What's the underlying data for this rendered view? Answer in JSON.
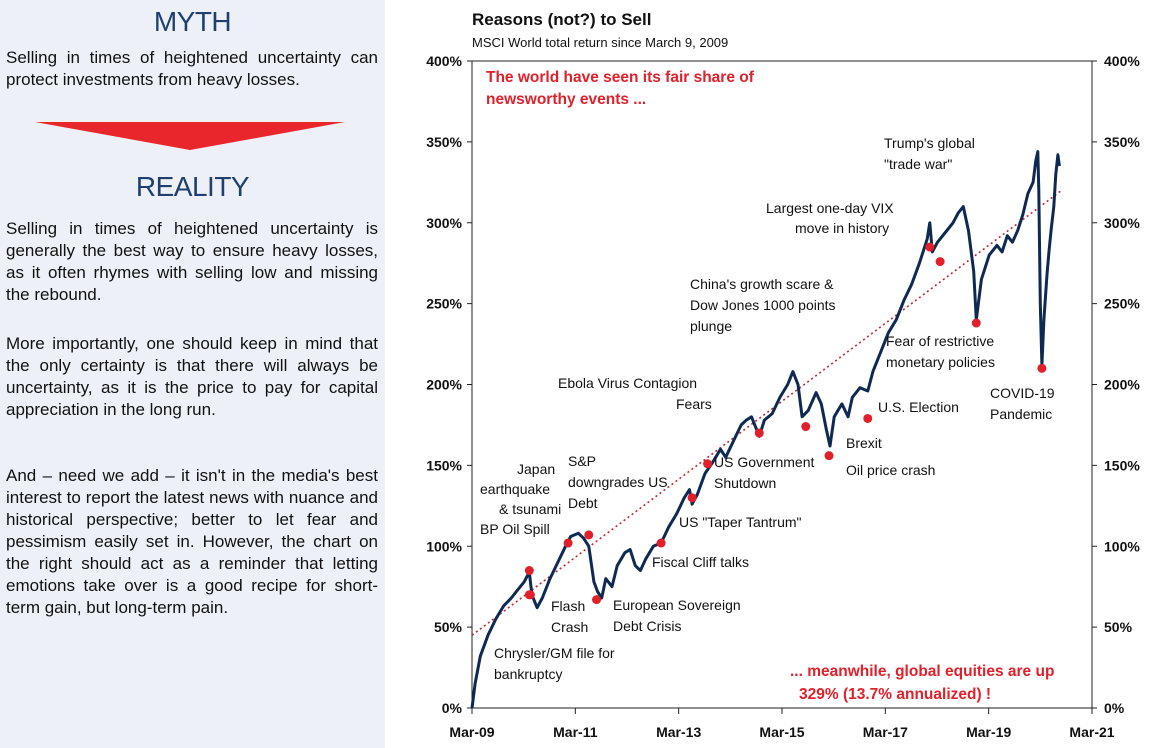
{
  "left": {
    "myth_title": "MYTH",
    "myth_text": "Selling in times of heightened uncertainty can protect investments from heavy losses.",
    "reality_title": "REALITY",
    "reality_p1": "Selling in times of heightened uncertainty is generally the best way to ensure heavy losses, as it often rhymes with selling low and missing the rebound.",
    "reality_p2": "More importantly, one should keep in mind that the only certainty is that there will always be uncertainty, as it is the price to pay for capital appreciation in the long run.",
    "reality_p3": "And – need we add – it isn't in the media's best interest to report the latest news with nuance and historical perspective; better to let fear and pessimism easily set in. However, the chart on the right should act as a reminder that letting emotions take over is a good recipe for short-term gain, but long-term pain."
  },
  "colors": {
    "line": "#0f2a52",
    "event_dot": "#e0202a",
    "trend": "#c0282d",
    "callout": "#e0202a",
    "arrow": "#e8262b",
    "heading": "#1f3f6e"
  },
  "chart_data": {
    "type": "line",
    "title": "Reasons (not?) to Sell",
    "subtitle": "MSCI World total return since March 9, 2009",
    "x_ticks": [
      "Mar-09",
      "Mar-11",
      "Mar-13",
      "Mar-15",
      "Mar-17",
      "Mar-19",
      "Mar-21"
    ],
    "y_ticks_left": [
      "0%",
      "50%",
      "100%",
      "150%",
      "200%",
      "250%",
      "300%",
      "350%",
      "400%"
    ],
    "y_ticks_right": [
      "0%",
      "50%",
      "100%",
      "150%",
      "200%",
      "250%",
      "300%",
      "350%",
      "400%"
    ],
    "xlim": [
      2009.19,
      2021.19
    ],
    "ylim": [
      0,
      400
    ],
    "series": [
      {
        "values": [
          [
            2009.19,
            0
          ],
          [
            2009.25,
            15
          ],
          [
            2009.35,
            32
          ],
          [
            2009.5,
            45
          ],
          [
            2009.65,
            55
          ],
          [
            2009.8,
            63
          ],
          [
            2009.95,
            68
          ],
          [
            2010.05,
            72
          ],
          [
            2010.2,
            78
          ],
          [
            2010.3,
            84
          ],
          [
            2010.35,
            70
          ],
          [
            2010.45,
            62
          ],
          [
            2010.55,
            68
          ],
          [
            2010.7,
            80
          ],
          [
            2010.85,
            90
          ],
          [
            2011.0,
            100
          ],
          [
            2011.1,
            106
          ],
          [
            2011.25,
            108
          ],
          [
            2011.35,
            105
          ],
          [
            2011.45,
            100
          ],
          [
            2011.55,
            78
          ],
          [
            2011.62,
            72
          ],
          [
            2011.7,
            68
          ],
          [
            2011.78,
            80
          ],
          [
            2011.9,
            75
          ],
          [
            2012.0,
            88
          ],
          [
            2012.15,
            96
          ],
          [
            2012.25,
            98
          ],
          [
            2012.35,
            88
          ],
          [
            2012.45,
            85
          ],
          [
            2012.55,
            92
          ],
          [
            2012.7,
            100
          ],
          [
            2012.85,
            102
          ],
          [
            2013.0,
            112
          ],
          [
            2013.15,
            120
          ],
          [
            2013.3,
            130
          ],
          [
            2013.4,
            135
          ],
          [
            2013.45,
            126
          ],
          [
            2013.55,
            132
          ],
          [
            2013.7,
            145
          ],
          [
            2013.85,
            152
          ],
          [
            2014.0,
            160
          ],
          [
            2014.1,
            155
          ],
          [
            2014.25,
            165
          ],
          [
            2014.4,
            175
          ],
          [
            2014.5,
            178
          ],
          [
            2014.6,
            180
          ],
          [
            2014.75,
            168
          ],
          [
            2014.85,
            178
          ],
          [
            2015.0,
            182
          ],
          [
            2015.15,
            192
          ],
          [
            2015.3,
            200
          ],
          [
            2015.4,
            208
          ],
          [
            2015.5,
            200
          ],
          [
            2015.58,
            180
          ],
          [
            2015.7,
            184
          ],
          [
            2015.85,
            195
          ],
          [
            2015.95,
            188
          ],
          [
            2016.05,
            172
          ],
          [
            2016.12,
            162
          ],
          [
            2016.2,
            180
          ],
          [
            2016.35,
            188
          ],
          [
            2016.47,
            180
          ],
          [
            2016.55,
            192
          ],
          [
            2016.7,
            198
          ],
          [
            2016.85,
            196
          ],
          [
            2016.95,
            208
          ],
          [
            2017.1,
            220
          ],
          [
            2017.25,
            232
          ],
          [
            2017.4,
            240
          ],
          [
            2017.55,
            252
          ],
          [
            2017.7,
            262
          ],
          [
            2017.85,
            275
          ],
          [
            2018.0,
            290
          ],
          [
            2018.05,
            300
          ],
          [
            2018.1,
            282
          ],
          [
            2018.2,
            288
          ],
          [
            2018.35,
            294
          ],
          [
            2018.5,
            300
          ],
          [
            2018.6,
            306
          ],
          [
            2018.7,
            310
          ],
          [
            2018.8,
            295
          ],
          [
            2018.9,
            270
          ],
          [
            2018.95,
            240
          ],
          [
            2019.05,
            265
          ],
          [
            2019.2,
            280
          ],
          [
            2019.35,
            286
          ],
          [
            2019.45,
            282
          ],
          [
            2019.55,
            292
          ],
          [
            2019.65,
            288
          ],
          [
            2019.75,
            295
          ],
          [
            2019.85,
            305
          ],
          [
            2019.95,
            318
          ],
          [
            2020.05,
            325
          ],
          [
            2020.1,
            338
          ],
          [
            2020.14,
            344
          ],
          [
            2020.16,
            320
          ],
          [
            2020.19,
            250
          ],
          [
            2020.22,
            212
          ],
          [
            2020.26,
            240
          ],
          [
            2020.32,
            268
          ],
          [
            2020.36,
            283
          ],
          [
            2020.4,
            296
          ],
          [
            2020.45,
            310
          ],
          [
            2020.49,
            330
          ],
          [
            2020.53,
            342
          ],
          [
            2020.56,
            335
          ]
        ]
      }
    ],
    "trend_line": [
      [
        2009.19,
        45
      ],
      [
        2020.6,
        320
      ]
    ],
    "events": [
      {
        "x": 2010.3,
        "y": 85,
        "label": "Japan\nearthquake\n& tsunami\nBP Oil Spill"
      },
      {
        "x": 2010.3,
        "y": 70,
        "label": "Chrysler/GM file for\nbankruptcy"
      },
      {
        "x": 2011.05,
        "y": 102,
        "label": ""
      },
      {
        "x": 2011.45,
        "y": 107,
        "label": "S&P\ndowngrades US\nDebt"
      },
      {
        "x": 2011.6,
        "y": 67,
        "label": "European Sovereign\nDebt Crisis"
      },
      {
        "x": 2012.85,
        "y": 102,
        "label": "Fiscal Cliff talks"
      },
      {
        "x": 2013.45,
        "y": 130,
        "label": "US \"Taper Tantrum\""
      },
      {
        "x": 2013.75,
        "y": 151,
        "label": "US Government\nShutdown"
      },
      {
        "x": 2014.75,
        "y": 170,
        "label": "Ebola Virus Contagion\nFears"
      },
      {
        "x": 2015.65,
        "y": 174,
        "label": "China's growth scare &\nDow Jones 1000 points\nplunge"
      },
      {
        "x": 2016.1,
        "y": 156,
        "label": "Brexit\nOil price crash"
      },
      {
        "x": 2016.85,
        "y": 179,
        "label": "U.S. Election"
      },
      {
        "x": 2018.05,
        "y": 285,
        "label": "Largest one-day VIX\nmove in history"
      },
      {
        "x": 2018.25,
        "y": 276,
        "label": "Trump's global\n\"trade war\""
      },
      {
        "x": 2018.95,
        "y": 238,
        "label": "Fear of restrictive\nmonetary policies"
      },
      {
        "x": 2020.22,
        "y": 210,
        "label": "COVID-19\nPandemic"
      },
      {
        "x": 2010.32,
        "y": 70,
        "label": "Flash\nCrash"
      }
    ],
    "callouts": [
      "The world have seen its fair share of\nnewsworthy events ...",
      "... meanwhile, global equities are up\n329% (13.7% annualized) !"
    ]
  }
}
